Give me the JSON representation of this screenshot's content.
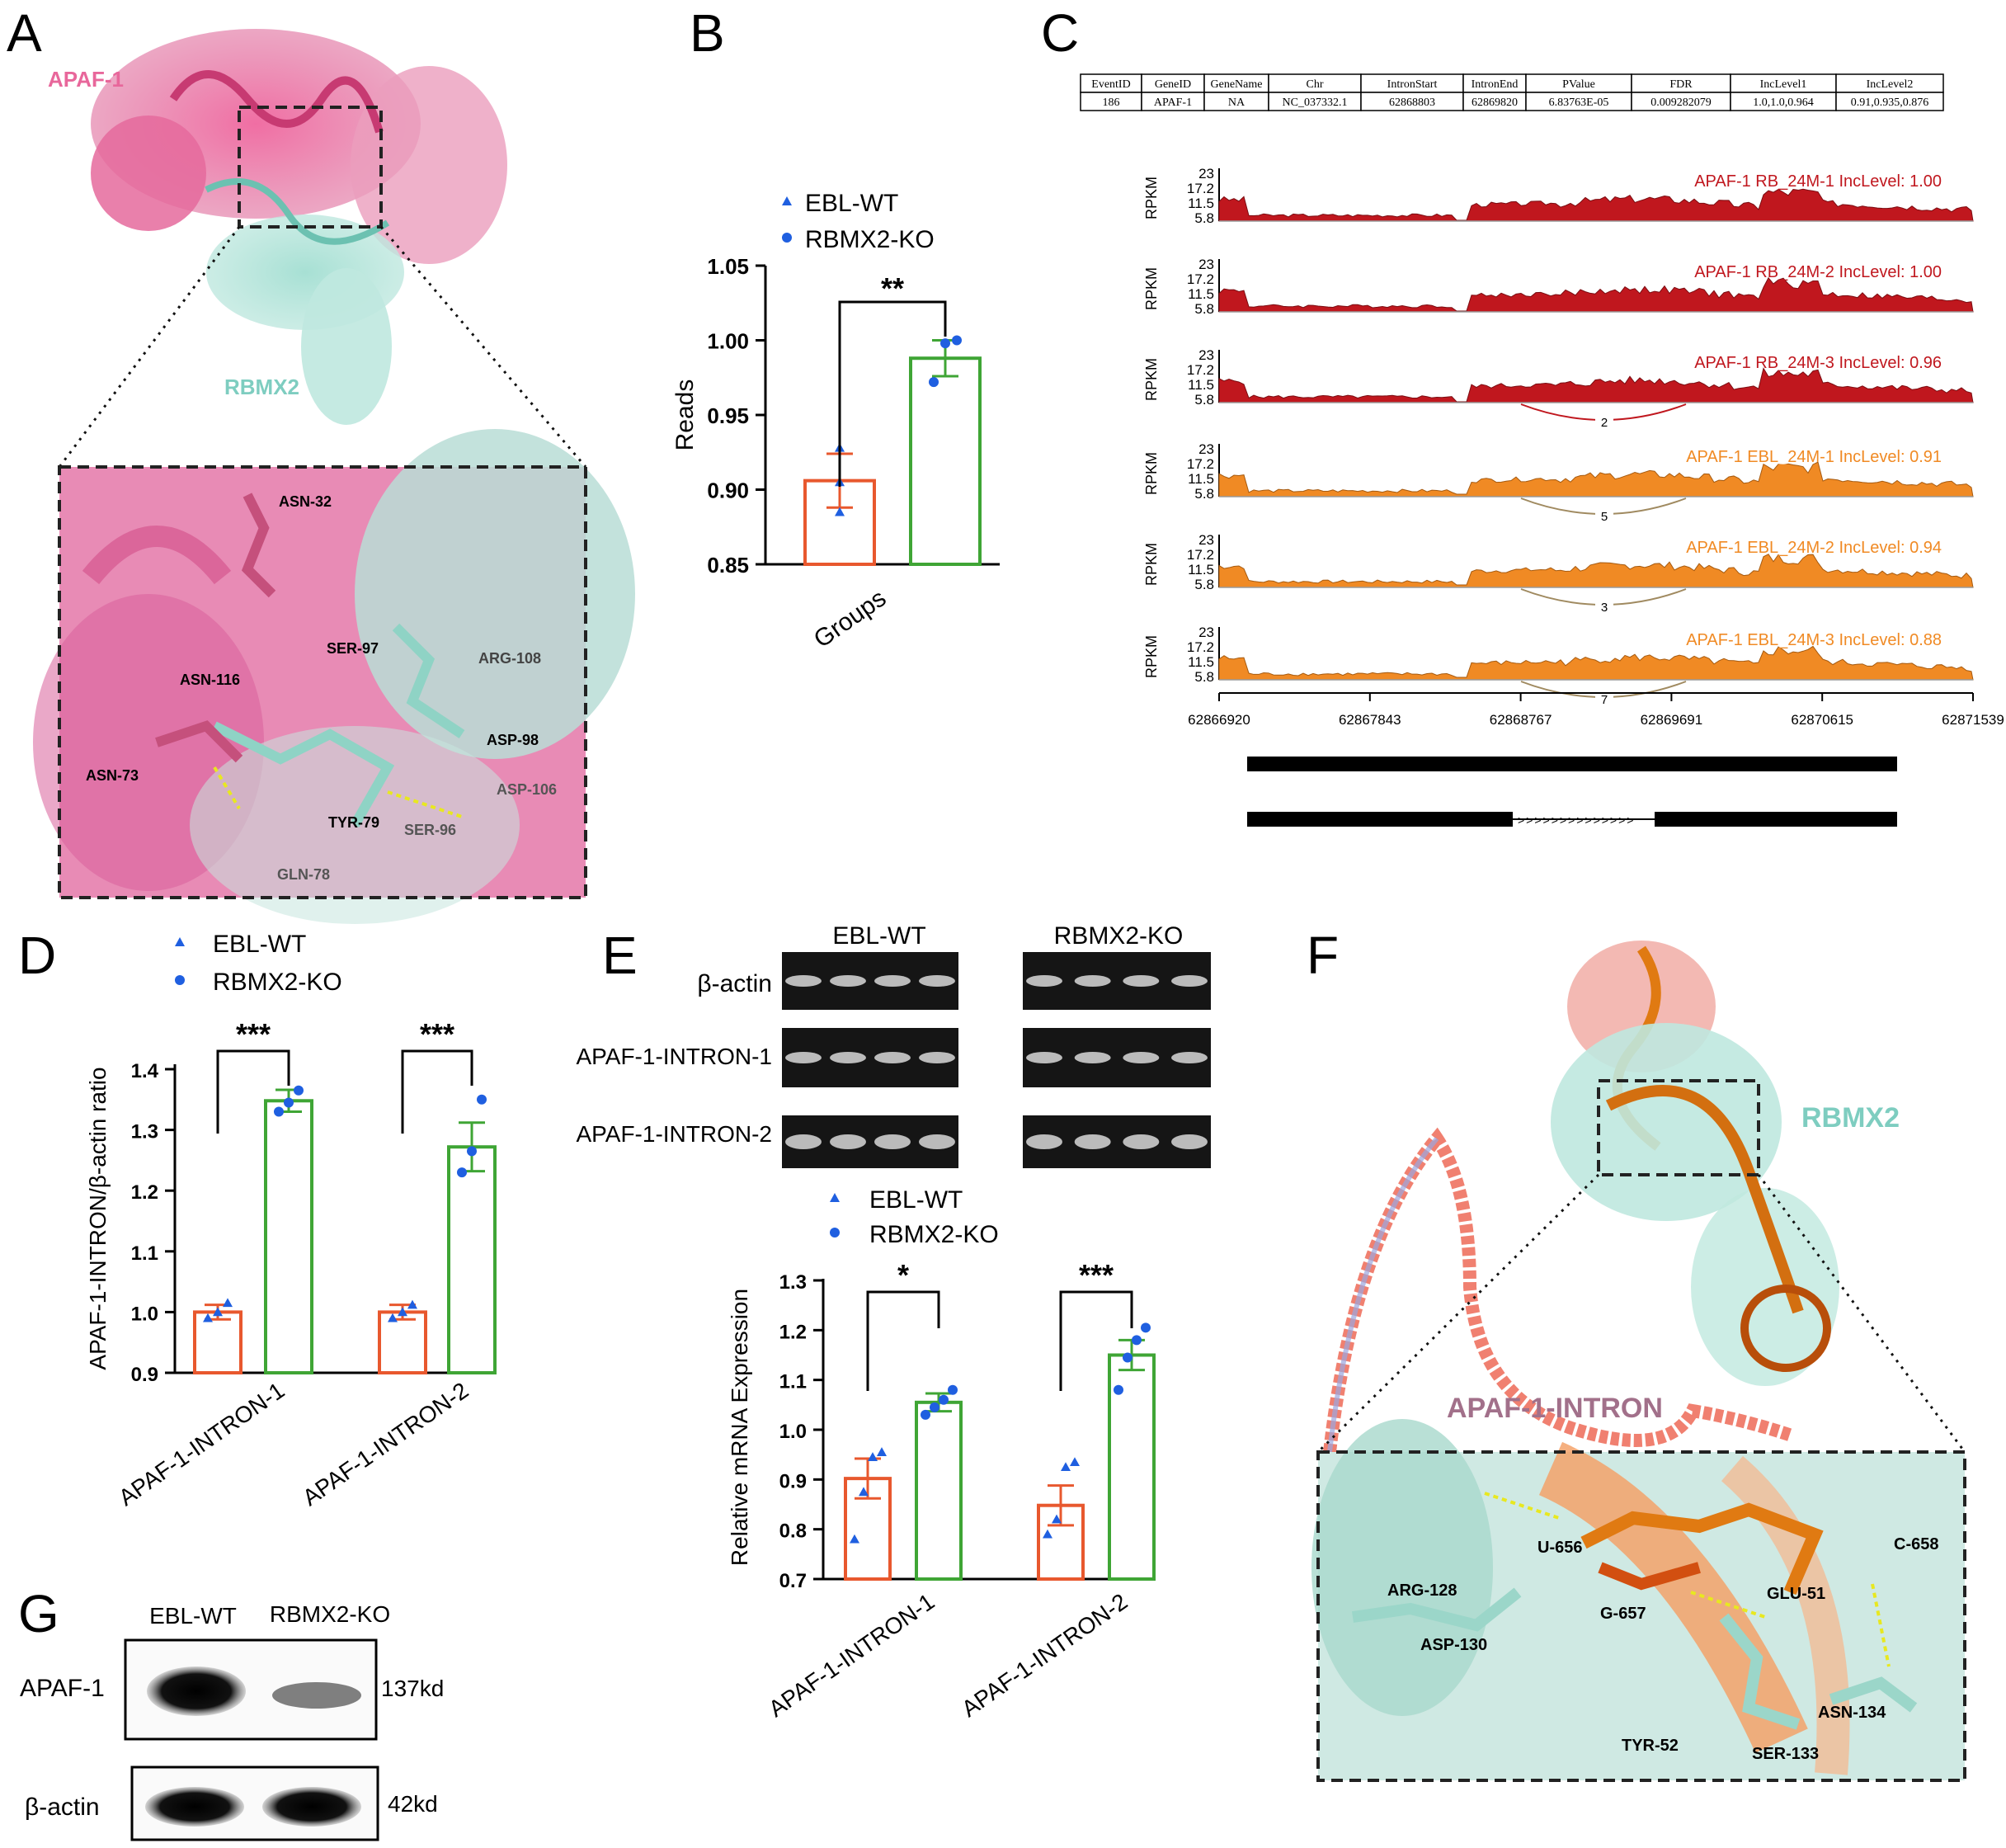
{
  "panel_letters": [
    "A",
    "B",
    "C",
    "D",
    "E",
    "F",
    "G"
  ],
  "colors": {
    "wt": "#e8582e",
    "ko": "#3fa535",
    "wt_point": "#1f5fe0",
    "ko_point": "#1f5fe0",
    "pink": "#e8679b",
    "teal": "#7ecdc0",
    "dark_red": "#c0171e",
    "orange": "#f08a24"
  },
  "panelA": {
    "protein1": "APAF-1",
    "protein2": "RBMX2",
    "residues": [
      "ASN-32",
      "ASN-116",
      "SER-97",
      "ARG-108",
      "ASN-73",
      "ASP-98",
      "ASP-106",
      "TYR-79",
      "SER-96",
      "GLN-78"
    ]
  },
  "panelB": {
    "legend": [
      "EBL-WT",
      "RBMX2-KO"
    ],
    "significance": "**",
    "chart_data": {
      "type": "bar",
      "categories": [
        "EBL-WT",
        "RBMX2-KO"
      ],
      "values": [
        0.906,
        0.988
      ],
      "errors": [
        0.018,
        0.012
      ],
      "points": [
        [
          0.885,
          0.905,
          0.928
        ],
        [
          0.972,
          0.998,
          1.0
        ]
      ],
      "xlabel": "Groups",
      "ylabel": "Reads",
      "ylim": [
        0.85,
        1.05
      ],
      "yticks": [
        "0.85",
        "0.90",
        "0.95",
        "1.00",
        "1.05"
      ]
    }
  },
  "panelC": {
    "table_headers": [
      "EventID",
      "GeneID",
      "GeneName",
      "Chr",
      "IntronStart",
      "IntronEnd",
      "PValue",
      "FDR",
      "IncLevel1",
      "IncLevel2"
    ],
    "table_row": [
      "186",
      "APAF-1",
      "NA",
      "NC_037332.1",
      "62868803",
      "62869820",
      "6.83763E-05",
      "0.009282079",
      "1.0,1.0,0.964",
      "0.91,0.935,0.876"
    ],
    "y_label": "RPKM",
    "y_ticks": [
      "23",
      "17.2",
      "11.5",
      "5.8"
    ],
    "x_ticks": [
      "62866920",
      "62867843",
      "62868767",
      "62869691",
      "62870615",
      "62871539"
    ],
    "tracks": [
      {
        "label": "APAF-1 RB_24M-1 IncLevel: 1.00",
        "group": "RB",
        "junction": ""
      },
      {
        "label": "APAF-1 RB_24M-2 IncLevel: 1.00",
        "group": "RB",
        "junction": ""
      },
      {
        "label": "APAF-1 RB_24M-3 IncLevel: 0.96",
        "group": "RB",
        "junction": "2"
      },
      {
        "label": "APAF-1 EBL_24M-1 IncLevel: 0.91",
        "group": "EBL",
        "junction": "5"
      },
      {
        "label": "APAF-1 EBL_24M-2 IncLevel: 0.94",
        "group": "EBL",
        "junction": "3"
      },
      {
        "label": "APAF-1 EBL_24M-3 IncLevel: 0.88",
        "group": "EBL",
        "junction": "7"
      }
    ]
  },
  "panelD": {
    "legend": [
      "EBL-WT",
      "RBMX2-KO"
    ],
    "chart_data": {
      "type": "bar",
      "categories": [
        "APAF-1-INTRON-1",
        "APAF-1-INTRON-2"
      ],
      "series": [
        {
          "name": "EBL-WT",
          "values": [
            1.0,
            1.0
          ],
          "errors": [
            0.012,
            0.012
          ],
          "points": [
            [
              0.99,
              1.0,
              1.015
            ],
            [
              0.99,
              1.0,
              1.012
            ]
          ]
        },
        {
          "name": "RBMX2-KO",
          "values": [
            1.348,
            1.272
          ],
          "errors": [
            0.018,
            0.04
          ],
          "points": [
            [
              1.33,
              1.345,
              1.365
            ],
            [
              1.23,
              1.265,
              1.35
            ]
          ]
        }
      ],
      "significance": [
        "***",
        "***"
      ],
      "ylabel": "APAF-1-INTRON/β-actin ratio",
      "ylim": [
        0.9,
        1.4
      ],
      "yticks": [
        "0.9",
        "1.0",
        "1.1",
        "1.2",
        "1.3",
        "1.4"
      ]
    }
  },
  "panelE": {
    "gel_groups": [
      "EBL-WT",
      "RBMX2-KO"
    ],
    "gel_rows": [
      "β-actin",
      "APAF-1-INTRON-1",
      "APAF-1-INTRON-2"
    ],
    "legend": [
      "EBL-WT",
      "RBMX2-KO"
    ],
    "chart_data": {
      "type": "bar",
      "categories": [
        "APAF-1-INTRON-1",
        "APAF-1-INTRON-2"
      ],
      "series": [
        {
          "name": "EBL-WT",
          "values": [
            0.902,
            0.848
          ],
          "errors": [
            0.04,
            0.04
          ],
          "points": [
            [
              0.78,
              0.875,
              0.945,
              0.955
            ],
            [
              0.79,
              0.82,
              0.925,
              0.935
            ]
          ]
        },
        {
          "name": "RBMX2-KO",
          "values": [
            1.055,
            1.15
          ],
          "errors": [
            0.018,
            0.03
          ],
          "points": [
            [
              1.03,
              1.045,
              1.06,
              1.08
            ],
            [
              1.08,
              1.145,
              1.18,
              1.205
            ]
          ]
        }
      ],
      "significance": [
        "*",
        "***"
      ],
      "ylabel": "Relative mRNA Expression",
      "ylim": [
        0.7,
        1.3
      ],
      "yticks": [
        "0.7",
        "0.8",
        "0.9",
        "1.0",
        "1.1",
        "1.2",
        "1.3"
      ]
    }
  },
  "panelF": {
    "protein": "RBMX2",
    "rna": "APAF-1-INTRON",
    "residues": [
      "U-656",
      "C-658",
      "ARG-128",
      "G-657",
      "GLU-51",
      "ASP-130",
      "ASN-134",
      "TYR-52",
      "SER-133"
    ]
  },
  "panelG": {
    "groups": [
      "EBL-WT",
      "RBMX2-KO"
    ],
    "rows": [
      {
        "label": "APAF-1",
        "size": "137kd"
      },
      {
        "label": "β-actin",
        "size": "42kd"
      }
    ]
  }
}
